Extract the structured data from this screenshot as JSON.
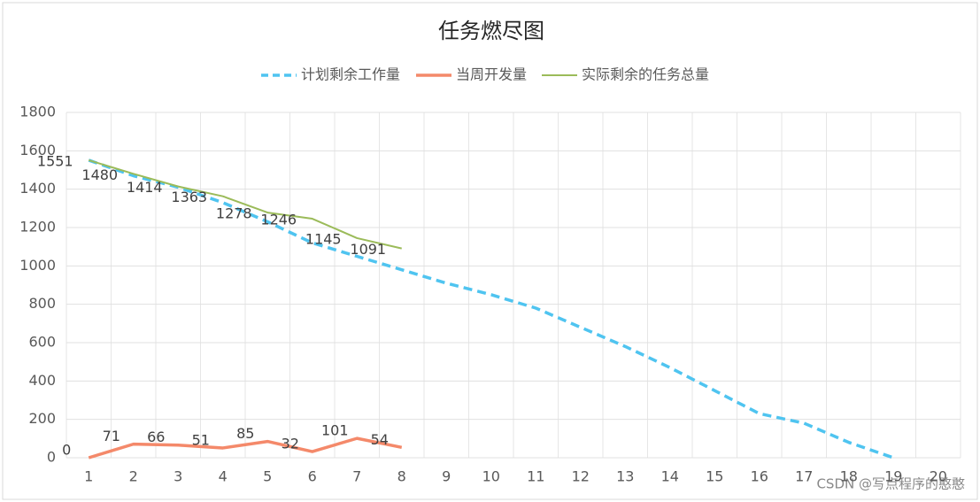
{
  "chart_data": {
    "type": "line",
    "title": "任务燃尽图",
    "categories": [
      "1",
      "2",
      "3",
      "4",
      "5",
      "6",
      "7",
      "8",
      "9",
      "10",
      "11",
      "12",
      "13",
      "14",
      "15",
      "16",
      "17",
      "18",
      "19",
      "20"
    ],
    "series": [
      {
        "name": "计划剩余工作量",
        "color": "#4fc4f0",
        "dashed": true,
        "width": 3.5,
        "data_labels": false,
        "values": [
          1551,
          1470,
          1410,
          1330,
          1230,
          1120,
          1050,
          980,
          910,
          850,
          780,
          680,
          580,
          470,
          350,
          230,
          180,
          80,
          0,
          null
        ]
      },
      {
        "name": "当周开发量",
        "color": "#f4896a",
        "dashed": false,
        "width": 3.5,
        "data_labels": true,
        "values": [
          0,
          71,
          66,
          51,
          85,
          32,
          101,
          54,
          null,
          null,
          null,
          null,
          null,
          null,
          null,
          null,
          null,
          null,
          null,
          null
        ]
      },
      {
        "name": "实际剩余的任务总量",
        "color": "#9bbb59",
        "dashed": false,
        "width": 2,
        "data_labels": true,
        "values": [
          1551,
          1480,
          1414,
          1363,
          1278,
          1246,
          1145,
          1091,
          null,
          null,
          null,
          null,
          null,
          null,
          null,
          null,
          null,
          null,
          null,
          null
        ]
      }
    ],
    "ylim": [
      0,
      1800
    ],
    "yticks": [
      0,
      200,
      400,
      600,
      800,
      1000,
      1200,
      1400,
      1600,
      1800
    ],
    "grid": true,
    "legend": "top",
    "watermark": "CSDN @写点程序的憨憨"
  }
}
